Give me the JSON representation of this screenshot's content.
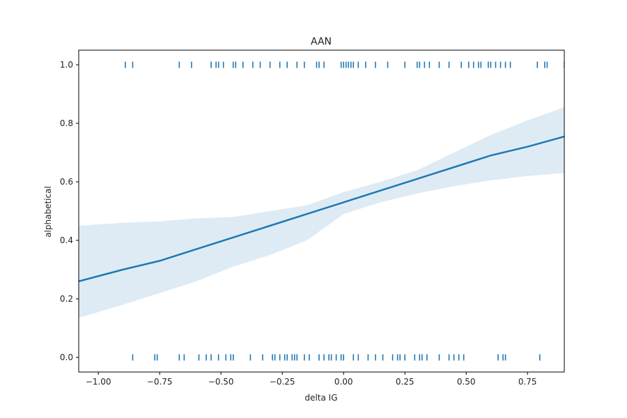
{
  "chart_data": {
    "type": "scatter",
    "title": "AAN",
    "xlabel": "delta IG",
    "ylabel": "alphabetical",
    "xlim": [
      -1.08,
      0.9
    ],
    "ylim": [
      -0.05,
      1.05
    ],
    "xticks": [
      -1.0,
      -0.75,
      -0.5,
      -0.25,
      0.0,
      0.25,
      0.5,
      0.75
    ],
    "xtick_labels": [
      "−1.00",
      "−0.75",
      "−0.50",
      "−0.25",
      "0.00",
      "0.25",
      "0.50",
      "0.75"
    ],
    "yticks": [
      0.0,
      0.2,
      0.4,
      0.6,
      0.8,
      1.0
    ],
    "ytick_labels": [
      "0.0",
      "0.2",
      "0.4",
      "0.6",
      "0.8",
      "1.0"
    ],
    "grid": false,
    "colors": {
      "line": "#1f77b4",
      "band": "#1f77b4",
      "points": "#1f77b4",
      "axes": "#000000"
    },
    "points_y1": [
      -0.89,
      -0.86,
      -0.67,
      -0.62,
      -0.54,
      -0.52,
      -0.51,
      -0.49,
      -0.45,
      -0.44,
      -0.41,
      -0.37,
      -0.34,
      -0.3,
      -0.26,
      -0.23,
      -0.19,
      -0.16,
      -0.11,
      -0.1,
      -0.08,
      -0.01,
      0.0,
      0.01,
      0.02,
      0.03,
      0.04,
      0.06,
      0.09,
      0.13,
      0.18,
      0.25,
      0.3,
      0.31,
      0.33,
      0.35,
      0.39,
      0.43,
      0.48,
      0.51,
      0.53,
      0.55,
      0.56,
      0.59,
      0.6,
      0.62,
      0.64,
      0.66,
      0.68,
      0.79,
      0.82,
      0.83,
      0.9
    ],
    "points_y0": [
      -0.86,
      -0.77,
      -0.76,
      -0.67,
      -0.65,
      -0.59,
      -0.56,
      -0.54,
      -0.51,
      -0.48,
      -0.46,
      -0.45,
      -0.38,
      -0.33,
      -0.29,
      -0.28,
      -0.26,
      -0.24,
      -0.23,
      -0.21,
      -0.2,
      -0.19,
      -0.16,
      -0.14,
      -0.1,
      -0.08,
      -0.06,
      -0.05,
      -0.03,
      -0.01,
      0.0,
      0.04,
      0.06,
      0.1,
      0.13,
      0.16,
      0.2,
      0.22,
      0.23,
      0.25,
      0.29,
      0.31,
      0.32,
      0.34,
      0.39,
      0.43,
      0.45,
      0.47,
      0.49,
      0.63,
      0.65,
      0.66,
      0.8
    ],
    "fit_line": {
      "x": [
        -1.08,
        -0.9,
        -0.75,
        -0.6,
        -0.45,
        -0.3,
        -0.15,
        0.0,
        0.15,
        0.3,
        0.45,
        0.6,
        0.75,
        0.9
      ],
      "y": [
        0.26,
        0.3,
        0.33,
        0.37,
        0.41,
        0.45,
        0.49,
        0.53,
        0.57,
        0.61,
        0.65,
        0.69,
        0.72,
        0.755
      ]
    },
    "confidence_band": {
      "x": [
        -1.08,
        -0.9,
        -0.75,
        -0.6,
        -0.45,
        -0.3,
        -0.15,
        0.0,
        0.15,
        0.3,
        0.45,
        0.6,
        0.75,
        0.9
      ],
      "upper": [
        0.45,
        0.46,
        0.465,
        0.475,
        0.48,
        0.5,
        0.52,
        0.565,
        0.6,
        0.64,
        0.7,
        0.76,
        0.81,
        0.855
      ],
      "lower": [
        0.135,
        0.18,
        0.22,
        0.26,
        0.31,
        0.35,
        0.4,
        0.49,
        0.53,
        0.56,
        0.585,
        0.605,
        0.62,
        0.63
      ]
    }
  }
}
